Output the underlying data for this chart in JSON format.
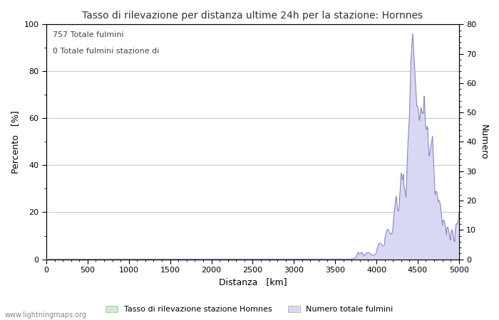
{
  "title": "Tasso di rilevazione per distanza ultime 24h per la stazione: Hornnes",
  "xlabel": "Distanza   [km]",
  "ylabel_left": "Percento   [%]",
  "ylabel_right": "Numero",
  "annotation_line1": "757 Totale fulmini",
  "annotation_line2": "0 Totale fulmini stazione di",
  "legend_label_green": "Tasso di rilevazione stazione Homnes",
  "legend_label_blue": "Numero totale fulmini",
  "watermark": "www.lightningmaps.org",
  "xlim": [
    0,
    5000
  ],
  "ylim_left": [
    0,
    100
  ],
  "ylim_right": [
    0,
    80
  ],
  "xticks": [
    0,
    500,
    1000,
    1500,
    2000,
    2500,
    3000,
    3500,
    4000,
    4500,
    5000
  ],
  "yticks_left": [
    0,
    20,
    40,
    60,
    80,
    100
  ],
  "yticks_right": [
    0,
    10,
    20,
    30,
    40,
    50,
    60,
    70,
    80
  ],
  "bg_color": "#ffffff",
  "plot_bg_color": "#ffffff",
  "grid_color": "#cccccc",
  "fill_color_blue": "#d8d8f5",
  "line_color_blue": "#8888bb",
  "fill_color_green": "#cceecc",
  "line_color_green": "#99cc99",
  "title_fontsize": 10,
  "label_fontsize": 9,
  "tick_fontsize": 8,
  "annot_fontsize": 8,
  "watermark_fontsize": 7,
  "legend_fontsize": 8
}
